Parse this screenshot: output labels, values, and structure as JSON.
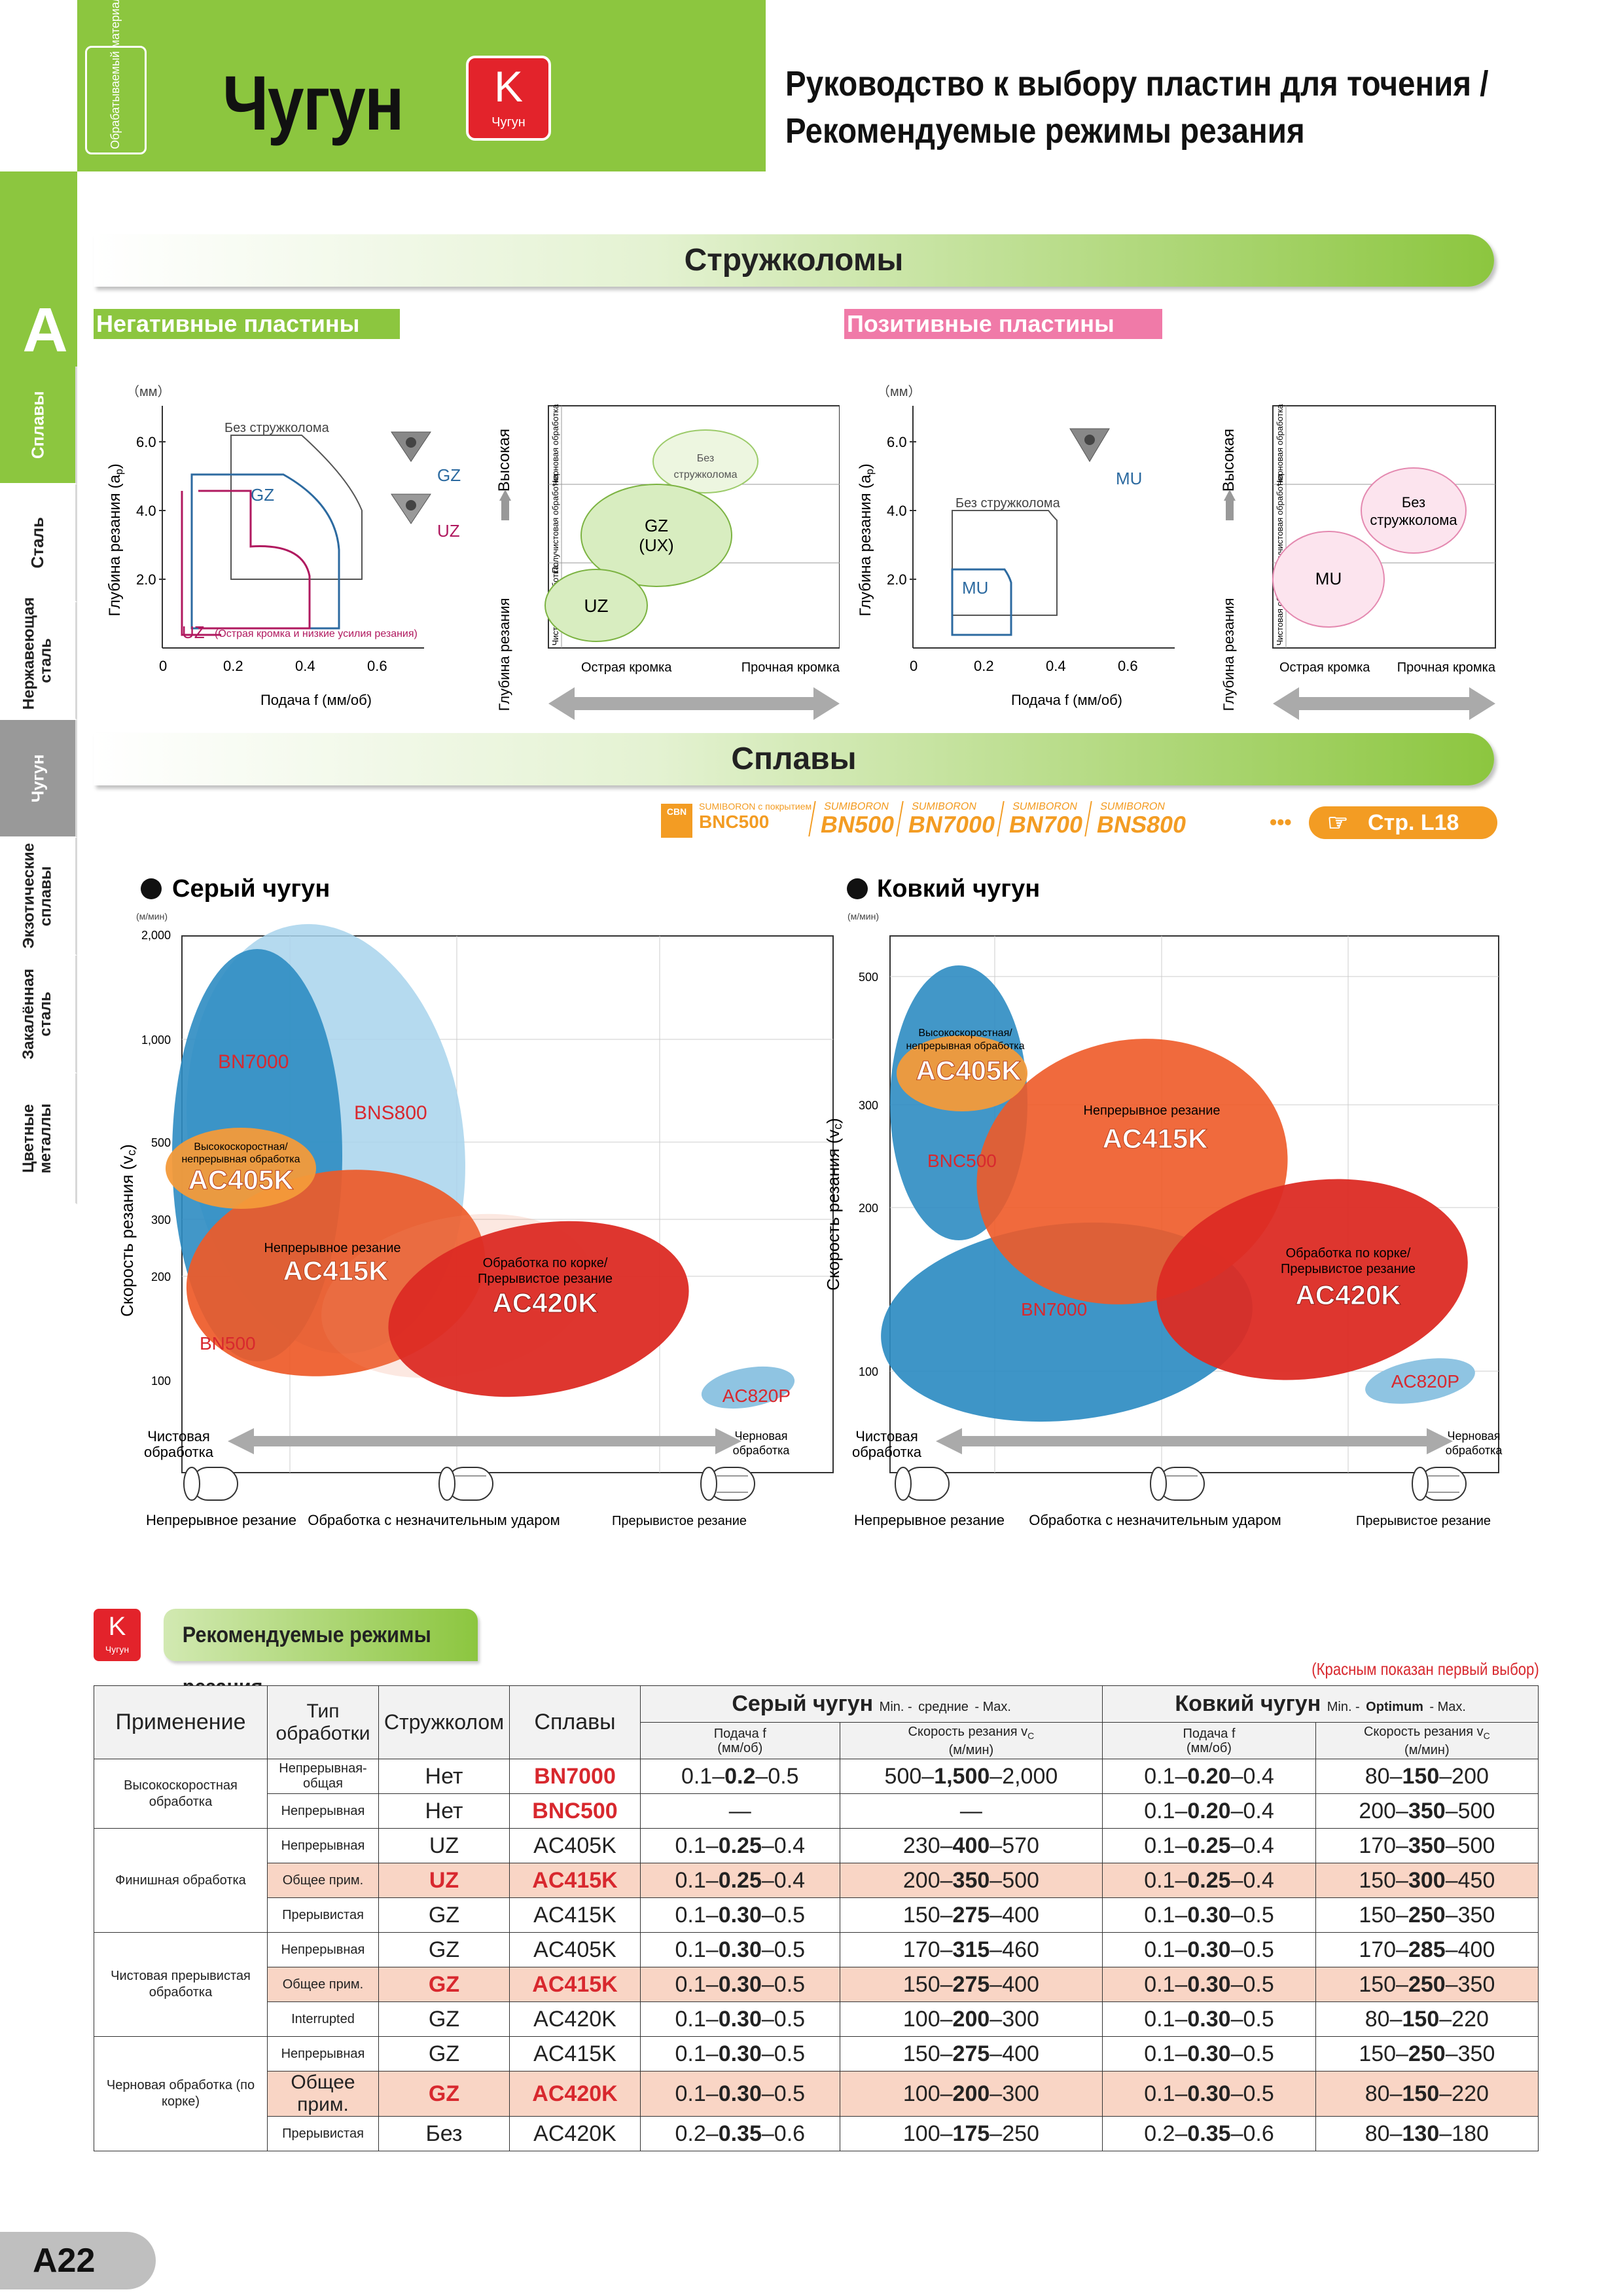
{
  "header": {
    "vertical_label": "Обрабатываемый материал",
    "material": "Чугун",
    "k_badge": "K",
    "k_badge_sub": "Чугун",
    "title_line1": "Руководство к выбору пластин для точения /",
    "title_line2": "Рекомендуемые режимы резания"
  },
  "sidebar": {
    "section_letter": "A",
    "tabs": [
      "Сплавы",
      "Сталь",
      "Нержавеющая сталь",
      "Чугун",
      "Экзотические сплавы",
      "Закалённая сталь",
      "Цветные металлы"
    ]
  },
  "chipbreakers": {
    "title": "Стружколомы",
    "negative": {
      "ribbon": "Негативные пластины",
      "unit": "（мм）",
      "ylabel": "Глубина резания (a",
      "ylabel_sub": "p",
      "ylabel_end": ")",
      "yticks": [
        "6.0",
        "4.0",
        "2.0"
      ],
      "xticks": [
        "0",
        "0.2",
        "0.4",
        "0.6"
      ],
      "xlabel": "Подача f (мм/об)",
      "no_chipbreaker": "Без стружколома",
      "gz": "GZ",
      "uz": "UZ",
      "uz_note": "(Острая кромка и низкие усилия резания)",
      "insert_gz": "GZ",
      "insert_uz": "UZ",
      "zone_high": "Высокая",
      "zone_depth": "Глубина резания",
      "rows": [
        "Черновая обработка",
        "Получистовая обработка",
        "Чистовая обработка"
      ],
      "bubble_none_1": "Без",
      "bubble_none_2": "стружколома",
      "bubble_gz_1": "GZ",
      "bubble_gz_2": "(UX)",
      "bubble_uz": "UZ",
      "edge_sharp": "Острая кромка",
      "edge_strong": "Прочная кромка"
    },
    "positive": {
      "ribbon": "Позитивные пластины",
      "unit": "（мм）",
      "ylabel": "Глубина резания (a",
      "ylabel_sub": "p",
      "ylabel_end": ")",
      "yticks": [
        "6.0",
        "4.0",
        "2.0"
      ],
      "xticks": [
        "0",
        "0.2",
        "0.4",
        "0.6"
      ],
      "xlabel": "Подача f (мм/об)",
      "no_chipbreaker": "Без стружколома",
      "mu": "MU",
      "insert_mu": "MU",
      "zone_high": "Высокая",
      "zone_depth": "Глубина резания",
      "rows": [
        "Черновая обработка",
        "Получистовая обработка",
        "Чистовая обработка"
      ],
      "bubble_none_1": "Без",
      "bubble_none_2": "стружколома",
      "bubble_mu": "MU",
      "edge_sharp": "Острая кромка",
      "edge_strong": "Прочная кромка"
    }
  },
  "alloys": {
    "title": "Сплавы",
    "cbn_badge": "CBN",
    "sumiboron_coated": "SUMIBORON с покрытием",
    "bnc500": "BNC500",
    "grades": [
      {
        "brand": "SUMIBORON",
        "name": "BN500"
      },
      {
        "brand": "SUMIBORON",
        "name": "BN7000"
      },
      {
        "brand": "SUMIBORON",
        "name": "BN700"
      },
      {
        "brand": "SUMIBORON",
        "name": "BNS800"
      }
    ],
    "dots": "•••",
    "page_ref": "Стр. L18",
    "gray": {
      "title": "Серый чугун",
      "unit": "(м/мин)",
      "ylabel": "Скорость резания (v",
      "ylabel_sub": "c",
      "ylabel_end": ")",
      "yticks": [
        "2,000",
        "1,000",
        "500",
        "300",
        "200",
        "100"
      ],
      "labels": {
        "bn7000": "BN7000",
        "bns800": "BNS800",
        "hs1": "Высокоскоростная/",
        "hs2": "непрерывная обработка",
        "ac405k": "AC405K",
        "cont": "Непрерывное резание",
        "ac415k": "AC415K",
        "scale1": "Обработка по корке/",
        "scale2": "Прерывистое резание",
        "ac420k": "AC420K",
        "bn500": "BN500",
        "ac820p": "AC820P"
      },
      "finish": [
        "Чистовая",
        "обработка"
      ],
      "rough": [
        "Черновая",
        "обработка"
      ],
      "cut_cont": "Непрерывное резание",
      "cut_light": "Обработка с незначительным ударом",
      "cut_int": "Прерывистое резание"
    },
    "ductile": {
      "title": "Ковкий чугун",
      "unit": "(м/мин)",
      "ylabel": "Скорость резания (v",
      "ylabel_sub": "c",
      "ylabel_end": ")",
      "yticks": [
        "500",
        "300",
        "200",
        "100"
      ],
      "labels": {
        "hs1": "Высокоскоростная/",
        "hs2": "непрерывная обработка",
        "ac405k": "AC405K",
        "cont": "Непрерывное резание",
        "ac415k": "AC415K",
        "bnc500": "BNC500",
        "scale1": "Обработка по корке/",
        "scale2": "Прерывистое резание",
        "ac420k": "AC420K",
        "bn7000": "BN7000",
        "ac820p": "AC820P"
      },
      "finish": [
        "Чистовая",
        "обработка"
      ],
      "rough": [
        "Черновая",
        "обработка"
      ],
      "cut_cont": "Непрерывное резание",
      "cut_light": "Обработка с незначительным ударом",
      "cut_int": "Прерывистое резание"
    }
  },
  "conditions": {
    "k_badge": "K",
    "k_badge_sub": "Чугун",
    "title": "Рекомендуемые режимы резания",
    "note": "(Красным показан первый выбор)",
    "headers": {
      "application": "Применение",
      "type1": "Тип",
      "type2": "обработки",
      "chipbreaker": "Стружколом",
      "alloys": "Сплавы",
      "gray": "Серый чугун",
      "gray_sub_min": "Min. -",
      "gray_sub_mid": "средние",
      "gray_sub_max": "- Max.",
      "ductile": "Ковкий чугун",
      "ductile_sub_min": "Min. -",
      "ductile_sub_mid": "Optimum",
      "ductile_sub_max": "- Max.",
      "feed1": "Подача f",
      "feed2": "(мм/об)",
      "speed1": "Скорость резания v",
      "speed_sub": "C",
      "speed2": "(м/мин)"
    },
    "rows": [
      {
        "app": "Высокоскоростная обработка",
        "type": "Непрерывная-общая",
        "cb": "Нет",
        "alloy": "BN7000",
        "gf": [
          "0.1",
          "0.2",
          "0.5"
        ],
        "gv": [
          "500",
          "1,500",
          "2,000"
        ],
        "df": [
          "0.1",
          "0.20",
          "0.4"
        ],
        "dv": [
          "80",
          "150",
          "200"
        ]
      },
      {
        "app": "",
        "type": "Непрерывная",
        "cb": "Нет",
        "alloy": "BNC500",
        "gf": [
          "—"
        ],
        "gv": [
          "—"
        ],
        "df": [
          "0.1",
          "0.20",
          "0.4"
        ],
        "dv": [
          "200",
          "350",
          "500"
        ]
      },
      {
        "app": "Финишная обработка",
        "type": "Непрерывная",
        "cb": "UZ",
        "alloy": "AC405K",
        "gf": [
          "0.1",
          "0.25",
          "0.4"
        ],
        "gv": [
          "230",
          "400",
          "570"
        ],
        "df": [
          "0.1",
          "0.25",
          "0.4"
        ],
        "dv": [
          "170",
          "350",
          "500"
        ]
      },
      {
        "app": "",
        "type": "Общее прим.",
        "cb": "UZ",
        "alloy": "AC415K",
        "gf": [
          "0.1",
          "0.25",
          "0.4"
        ],
        "gv": [
          "200",
          "350",
          "500"
        ],
        "df": [
          "0.1",
          "0.25",
          "0.4"
        ],
        "dv": [
          "150",
          "300",
          "450"
        ]
      },
      {
        "app": "",
        "type": "Прерывистая",
        "cb": "GZ",
        "alloy": "AC415K",
        "gf": [
          "0.1",
          "0.30",
          "0.5"
        ],
        "gv": [
          "150",
          "275",
          "400"
        ],
        "df": [
          "0.1",
          "0.30",
          "0.5"
        ],
        "dv": [
          "150",
          "250",
          "350"
        ]
      },
      {
        "app": "Чистовая прерывистая обработка",
        "type": "Непрерывная",
        "cb": "GZ",
        "alloy": "AC405K",
        "gf": [
          "0.1",
          "0.30",
          "0.5"
        ],
        "gv": [
          "170",
          "315",
          "460"
        ],
        "df": [
          "0.1",
          "0.30",
          "0.5"
        ],
        "dv": [
          "170",
          "285",
          "400"
        ]
      },
      {
        "app": "",
        "type": "Общее прим.",
        "cb": "GZ",
        "alloy": "AC415K",
        "gf": [
          "0.1",
          "0.30",
          "0.5"
        ],
        "gv": [
          "150",
          "275",
          "400"
        ],
        "df": [
          "0.1",
          "0.30",
          "0.5"
        ],
        "dv": [
          "150",
          "250",
          "350"
        ]
      },
      {
        "app": "",
        "type": "Interrupted",
        "cb": "GZ",
        "alloy": "AC420K",
        "gf": [
          "0.1",
          "0.30",
          "0.5"
        ],
        "gv": [
          "100",
          "200",
          "300"
        ],
        "df": [
          "0.1",
          "0.30",
          "0.5"
        ],
        "dv": [
          "80",
          "150",
          "220"
        ]
      },
      {
        "app": "Черновая обработка (по корке)",
        "type": "Непрерывная",
        "cb": "GZ",
        "alloy": "AC415K",
        "gf": [
          "0.1",
          "0.30",
          "0.5"
        ],
        "gv": [
          "150",
          "275",
          "400"
        ],
        "df": [
          "0.1",
          "0.30",
          "0.5"
        ],
        "dv": [
          "150",
          "250",
          "350"
        ]
      },
      {
        "app": "",
        "type": "Общее прим.",
        "cb": "GZ",
        "alloy": "AC420K",
        "gf": [
          "0.1",
          "0.30",
          "0.5"
        ],
        "gv": [
          "100",
          "200",
          "300"
        ],
        "df": [
          "0.1",
          "0.30",
          "0.5"
        ],
        "dv": [
          "80",
          "150",
          "220"
        ]
      },
      {
        "app": "",
        "type": "Прерывистая",
        "cb": "Без",
        "alloy": "AC420K",
        "gf": [
          "0.2",
          "0.35",
          "0.6"
        ],
        "gv": [
          "100",
          "175",
          "250"
        ],
        "df": [
          "0.2",
          "0.35",
          "0.6"
        ],
        "dv": [
          "80",
          "130",
          "180"
        ]
      }
    ]
  },
  "page_number": "A22",
  "colors": {
    "green": "#8cc63f",
    "red": "#d8282e",
    "blue": "#2f8fc0",
    "orange": "#f28a2c",
    "pink_ribbon": "#f07aa8",
    "gold": "#f39c23"
  }
}
